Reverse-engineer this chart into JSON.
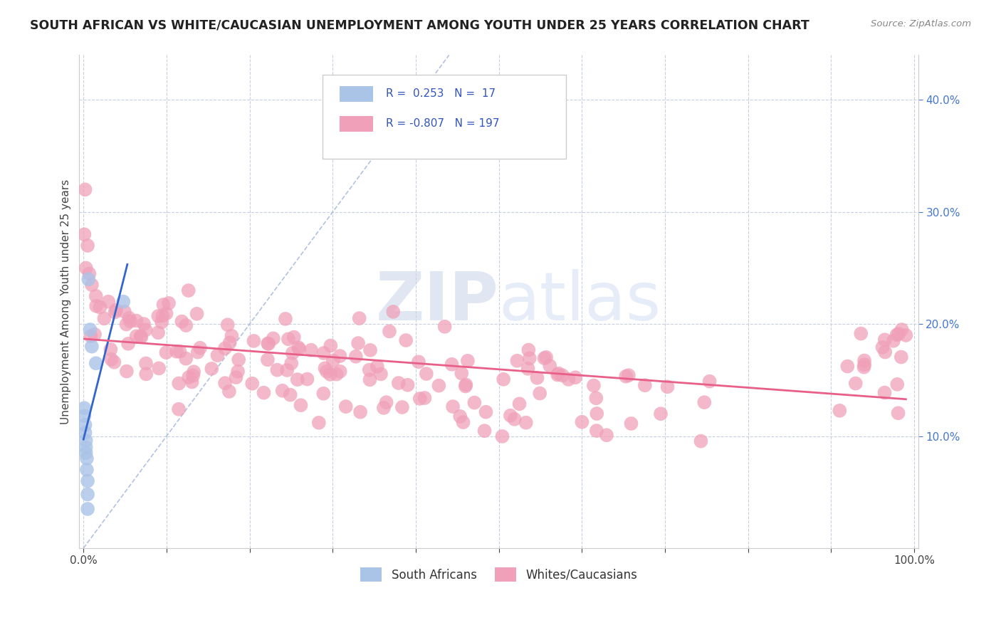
{
  "title": "SOUTH AFRICAN VS WHITE/CAUCASIAN UNEMPLOYMENT AMONG YOUTH UNDER 25 YEARS CORRELATION CHART",
  "source": "Source: ZipAtlas.com",
  "ylabel": "Unemployment Among Youth under 25 years",
  "xlim": [
    -0.005,
    1.005
  ],
  "ylim": [
    0.0,
    0.44
  ],
  "xticks": [
    0.0,
    0.1,
    0.2,
    0.3,
    0.4,
    0.5,
    0.6,
    0.7,
    0.8,
    0.9,
    1.0
  ],
  "xticklabels": [
    "0.0%",
    "",
    "",
    "",
    "",
    "",
    "",
    "",
    "",
    "",
    "100.0%"
  ],
  "yticks": [
    0.1,
    0.2,
    0.3,
    0.4
  ],
  "yticklabels": [
    "10.0%",
    "20.0%",
    "30.0%",
    "40.0%"
  ],
  "legend_label1": "South Africans",
  "legend_label2": "Whites/Caucasians",
  "blue_color": "#aac4e8",
  "pink_color": "#f0a0b8",
  "blue_line_color": "#3366cc",
  "pink_line_color": "#e8608a",
  "background_color": "#ffffff",
  "grid_color": "#c8d0e0",
  "watermark_zip_color": "#c8d4e8",
  "watermark_atlas_color": "#c8d8f0",
  "title_color": "#222222",
  "source_color": "#888888",
  "ylabel_color": "#444444",
  "ytick_color": "#4477cc",
  "xtick_color": "#444444",
  "spine_color": "#cccccc",
  "legend_box_color": "#cccccc",
  "legend_text_color": "#3355bb",
  "diagonal_color": "#aabbdd"
}
